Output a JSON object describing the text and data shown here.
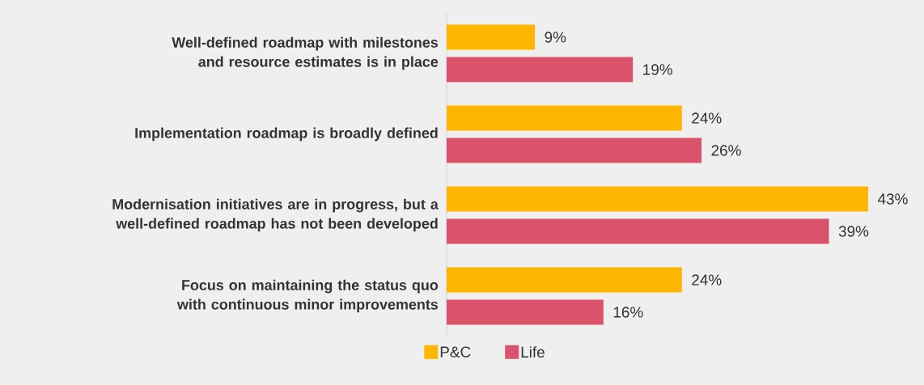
{
  "chart_data": {
    "type": "bar",
    "orientation": "horizontal",
    "categories": [
      "Well-defined roadmap with milestones and resource estimates is in place",
      "Implementation roadmap is broadly defined",
      "Modernisation initiatives are in progress, but a well-defined roadmap has not been developed",
      "Focus on maintaining the status quo with continuous minor improvements"
    ],
    "series": [
      {
        "name": "P&C",
        "color": "#ffb600",
        "values": [
          9,
          24,
          43,
          24
        ],
        "value_labels": [
          "9%",
          "24%",
          "43%",
          "24%"
        ]
      },
      {
        "name": "Life",
        "color": "#db536a",
        "values": [
          19,
          26,
          39,
          16
        ],
        "value_labels": [
          "19%",
          "26%",
          "39%",
          "16%"
        ]
      }
    ],
    "legend": "bottom"
  }
}
